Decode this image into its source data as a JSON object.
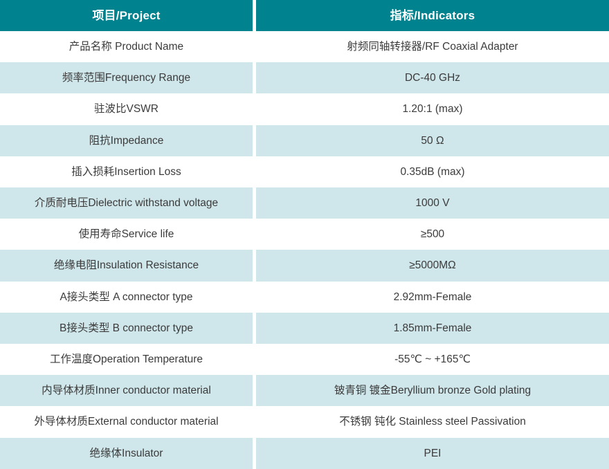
{
  "colors": {
    "header_bg": "#00838F",
    "header_text": "#FFFFFF",
    "row_bg": "#FFFFFF",
    "row_alt_bg": "#CFE6EA",
    "body_text": "#3B3B3B",
    "column_divider": "#FFFFFF"
  },
  "table": {
    "headers": [
      "项目/Project",
      "指标/Indicators"
    ],
    "rows": [
      {
        "project": "产品名称 Product Name",
        "indicator": "射频同轴转接器/RF Coaxial Adapter"
      },
      {
        "project": "频率范围Frequency Range",
        "indicator": "DC-40 GHz"
      },
      {
        "project": "驻波比VSWR",
        "indicator": "1.20:1 (max)"
      },
      {
        "project": "阻抗Impedance",
        "indicator": "50 Ω"
      },
      {
        "project": "插入损耗Insertion Loss",
        "indicator": "0.35dB (max)"
      },
      {
        "project": "介质耐电压Dielectric withstand voltage",
        "indicator": "1000 V"
      },
      {
        "project": "使用寿命Service life",
        "indicator": "≥500"
      },
      {
        "project": "绝缘电阻Insulation Resistance",
        "indicator": "≥5000MΩ"
      },
      {
        "project": "A接头类型 A connector type",
        "indicator": "2.92mm-Female"
      },
      {
        "project": "B接头类型 B connector type",
        "indicator": "1.85mm-Female"
      },
      {
        "project": "工作温度Operation Temperature",
        "indicator": "-55℃ ~ +165℃"
      },
      {
        "project": "内导体材质Inner conductor material",
        "indicator": "铍青铜 镀金Beryllium bronze Gold plating"
      },
      {
        "project": "外导体材质External conductor material",
        "indicator": "不锈钢 钝化 Stainless steel Passivation"
      },
      {
        "project": "绝缘体Insulator",
        "indicator": "PEI"
      }
    ]
  }
}
